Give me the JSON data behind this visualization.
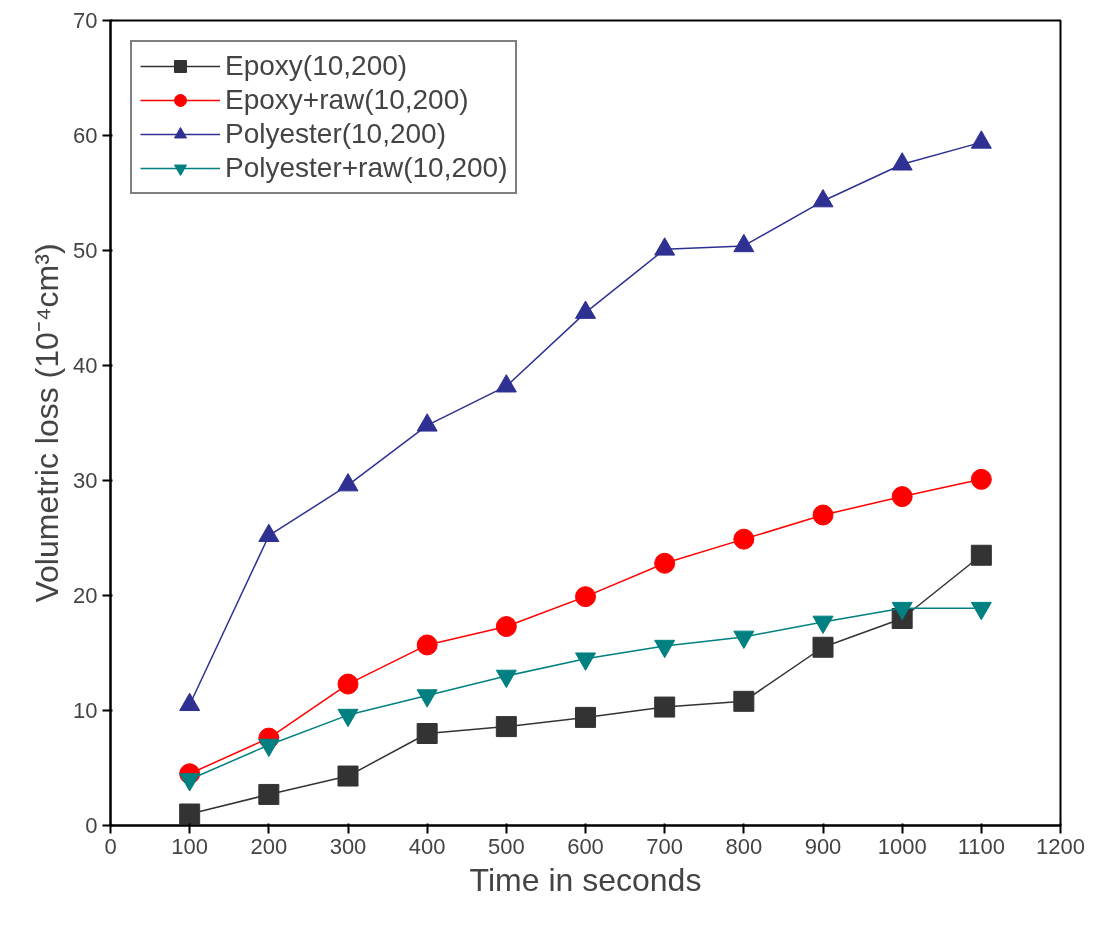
{
  "chart_data": {
    "type": "line",
    "xlabel": "Time in seconds",
    "ylabel": "Volumetric loss (10⁻⁴cm³)",
    "x": [
      100,
      200,
      300,
      400,
      500,
      600,
      700,
      800,
      900,
      1000,
      1100
    ],
    "series": [
      {
        "name": "Epoxy(10,200)",
        "color": "#333333",
        "marker": "square",
        "values": [
          1.0,
          2.7,
          4.3,
          8.0,
          8.6,
          9.4,
          10.3,
          10.8,
          15.5,
          18.0,
          23.5
        ]
      },
      {
        "name": "Epoxy+raw(10,200)",
        "color": "#ff0000",
        "marker": "circle",
        "values": [
          4.5,
          7.6,
          12.3,
          15.7,
          17.3,
          19.9,
          22.8,
          24.9,
          27.0,
          28.6,
          30.1
        ]
      },
      {
        "name": "Polyester(10,200)",
        "color": "#2e3192",
        "marker": "triangle",
        "values": [
          10.5,
          25.2,
          29.6,
          34.8,
          38.2,
          44.6,
          50.1,
          50.4,
          54.3,
          57.5,
          59.4
        ]
      },
      {
        "name": "Polyester+raw(10,200)",
        "color": "#008080",
        "marker": "triangle_down",
        "values": [
          4.0,
          7.0,
          9.6,
          11.3,
          13.0,
          14.5,
          15.6,
          16.4,
          17.7,
          18.9,
          18.9
        ]
      }
    ],
    "xlim": [
      0,
      1200
    ],
    "xticks": [
      0,
      100,
      200,
      300,
      400,
      500,
      600,
      700,
      800,
      900,
      1000,
      1100,
      1200
    ],
    "ylim": [
      0,
      70
    ],
    "yticks": [
      0,
      10,
      20,
      30,
      40,
      50,
      60,
      70
    ],
    "grid": false,
    "legend": "top left",
    "line_style": "solid"
  }
}
